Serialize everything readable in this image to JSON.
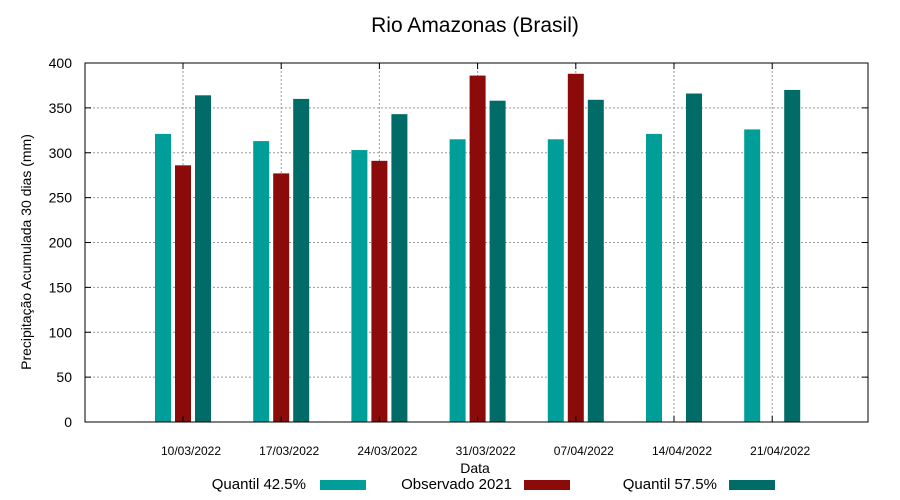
{
  "chart_data": {
    "type": "bar",
    "title": "Rio Amazonas (Brasil)",
    "xlabel": "Data",
    "ylabel": "Precipitação Acumulada 30 dias (mm)",
    "ylim": [
      0,
      400
    ],
    "yticks": [
      0,
      50,
      100,
      150,
      200,
      250,
      300,
      350,
      400
    ],
    "grid": true,
    "legend_position": "bottom",
    "categories": [
      "10/03/2022",
      "17/03/2022",
      "24/03/2022",
      "31/03/2022",
      "07/04/2022",
      "14/04/2022",
      "21/04/2022"
    ],
    "series": [
      {
        "name": "Quantil 42.5%",
        "color": "#009e99",
        "values": [
          321,
          313,
          303,
          315,
          315,
          321,
          326
        ]
      },
      {
        "name": "Observado 2021",
        "color": "#8b0a0a",
        "values": [
          286,
          277,
          291,
          386,
          388,
          null,
          null
        ]
      },
      {
        "name": "Quantil 57.5%",
        "color": "#006b67",
        "values": [
          364,
          360,
          343,
          358,
          359,
          366,
          370
        ]
      }
    ]
  }
}
